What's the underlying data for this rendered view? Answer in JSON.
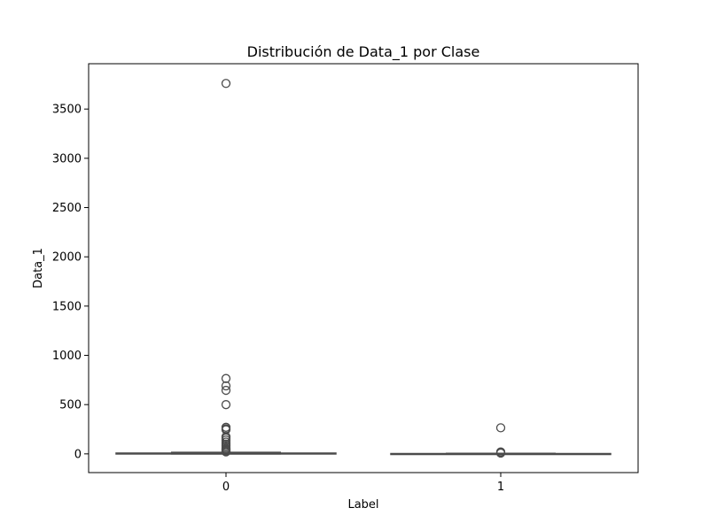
{
  "chart_data": {
    "type": "box",
    "title": "Distribución de Data_1 por Clase",
    "xlabel": "Label",
    "ylabel": "Data_1",
    "categories": [
      "0",
      "1"
    ],
    "ylim": [
      -190,
      3960
    ],
    "yticks": [
      0,
      500,
      1000,
      1500,
      2000,
      2500,
      3000,
      3500
    ],
    "grid": false,
    "box_color": "#4b4b4b",
    "series": [
      {
        "category": "0",
        "whisker_low": 0,
        "q1": 1,
        "median": 3,
        "q3": 8,
        "whisker_high": 15,
        "outliers": [
          3760,
          765,
          690,
          645,
          500,
          270,
          255,
          245,
          175,
          160,
          140,
          120,
          100,
          85,
          70,
          55,
          45,
          35,
          25,
          20
        ]
      },
      {
        "category": "1",
        "whisker_low": 0,
        "q1": 0,
        "median": 1,
        "q3": 3,
        "whisker_high": 5,
        "outliers": [
          265,
          20,
          12,
          8
        ]
      }
    ]
  }
}
